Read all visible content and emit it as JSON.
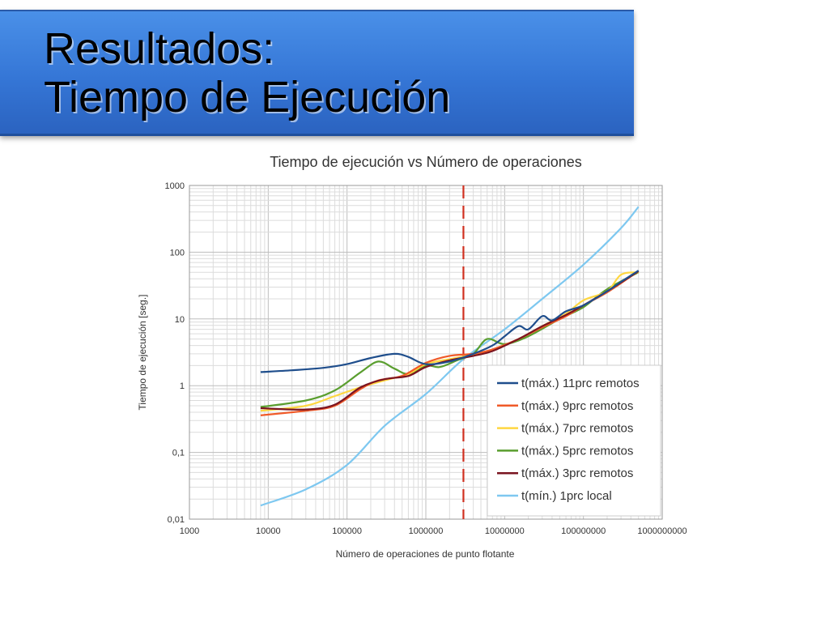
{
  "slide": {
    "title_line1": "Resultados:",
    "title_line2": "Tiempo de Ejecución",
    "banner_color": "#3a7de0"
  },
  "chart_data": {
    "type": "line",
    "title": "Tiempo de ejecución vs Número de operaciones",
    "xlabel": "Número de operaciones de punto flotante",
    "ylabel": "Tiempo de ejecución [seg.]",
    "xscale": "log",
    "yscale": "log",
    "xlim": [
      1000,
      1000000000
    ],
    "ylim": [
      0.01,
      1000
    ],
    "x_ticks": [
      "1000",
      "10000",
      "100000",
      "1000000",
      "10000000",
      "100000000",
      "1000000000"
    ],
    "y_ticks": [
      "0,01",
      "0,1",
      "1",
      "10",
      "100",
      "1000"
    ],
    "grid": true,
    "legend_position": "bottom-right",
    "vertical_reference_x": 3000000,
    "vertical_reference_color": "#d03020",
    "series": [
      {
        "name": "t(máx.) 11prc remotos",
        "color": "#1f4e8c",
        "points": [
          [
            8000,
            1.6
          ],
          [
            20000,
            1.7
          ],
          [
            50000,
            1.85
          ],
          [
            100000,
            2.1
          ],
          [
            200000,
            2.6
          ],
          [
            400000,
            3.0
          ],
          [
            600000,
            2.7
          ],
          [
            1000000,
            2.1
          ],
          [
            2000000,
            2.3
          ],
          [
            4000000,
            3.0
          ],
          [
            7000000,
            4.0
          ],
          [
            10000000,
            5.5
          ],
          [
            15000000,
            7.8
          ],
          [
            20000000,
            7.0
          ],
          [
            30000000,
            11.0
          ],
          [
            40000000,
            9.5
          ],
          [
            60000000,
            13.0
          ],
          [
            100000000,
            16.0
          ],
          [
            200000000,
            26.0
          ],
          [
            300000000,
            36.0
          ],
          [
            500000000,
            53.0
          ]
        ]
      },
      {
        "name": "t(máx.)  9prc remotos",
        "color": "#f05a28",
        "points": [
          [
            8000,
            0.36
          ],
          [
            30000,
            0.42
          ],
          [
            70000,
            0.5
          ],
          [
            150000,
            0.9
          ],
          [
            250000,
            1.2
          ],
          [
            500000,
            1.4
          ],
          [
            1000000,
            2.2
          ],
          [
            2000000,
            2.8
          ],
          [
            4000000,
            3.0
          ],
          [
            7000000,
            3.5
          ],
          [
            15000000,
            5.0
          ],
          [
            30000000,
            7.5
          ],
          [
            60000000,
            11.0
          ],
          [
            100000000,
            16.0
          ],
          [
            200000000,
            25.0
          ],
          [
            500000000,
            52.0
          ]
        ]
      },
      {
        "name": "t(máx.)  7prc remotos",
        "color": "#ffd740",
        "points": [
          [
            8000,
            0.42
          ],
          [
            30000,
            0.5
          ],
          [
            70000,
            0.7
          ],
          [
            150000,
            0.95
          ],
          [
            300000,
            1.2
          ],
          [
            600000,
            1.5
          ],
          [
            1000000,
            2.1
          ],
          [
            2000000,
            2.5
          ],
          [
            4000000,
            2.9
          ],
          [
            7000000,
            3.4
          ],
          [
            15000000,
            5.0
          ],
          [
            30000000,
            7.8
          ],
          [
            60000000,
            12.0
          ],
          [
            100000000,
            19.0
          ],
          [
            200000000,
            26.0
          ],
          [
            300000000,
            46.0
          ],
          [
            500000000,
            50.0
          ]
        ]
      },
      {
        "name": "t(máx.) 5prc remotos",
        "color": "#5a9e2f",
        "points": [
          [
            8000,
            0.48
          ],
          [
            30000,
            0.6
          ],
          [
            70000,
            0.85
          ],
          [
            150000,
            1.6
          ],
          [
            250000,
            2.3
          ],
          [
            400000,
            1.8
          ],
          [
            600000,
            1.5
          ],
          [
            1000000,
            2.0
          ],
          [
            1500000,
            1.9
          ],
          [
            2500000,
            2.4
          ],
          [
            4000000,
            3.0
          ],
          [
            6000000,
            5.0
          ],
          [
            10000000,
            4.2
          ],
          [
            20000000,
            5.5
          ],
          [
            50000000,
            10.0
          ],
          [
            100000000,
            15.0
          ],
          [
            200000000,
            28.0
          ],
          [
            500000000,
            50.0
          ]
        ]
      },
      {
        "name": "t(máx.)  3prc remotos",
        "color": "#7a1420",
        "points": [
          [
            8000,
            0.46
          ],
          [
            30000,
            0.44
          ],
          [
            70000,
            0.52
          ],
          [
            150000,
            0.95
          ],
          [
            300000,
            1.25
          ],
          [
            600000,
            1.4
          ],
          [
            1000000,
            1.9
          ],
          [
            2000000,
            2.4
          ],
          [
            4000000,
            2.8
          ],
          [
            7000000,
            3.3
          ],
          [
            15000000,
            5.0
          ],
          [
            30000000,
            7.8
          ],
          [
            60000000,
            11.5
          ],
          [
            100000000,
            16.0
          ],
          [
            200000000,
            26.0
          ],
          [
            500000000,
            52.0
          ]
        ]
      },
      {
        "name": "t(mín.)  1prc local",
        "color": "#7ec8f0",
        "points": [
          [
            8000,
            0.016
          ],
          [
            30000,
            0.028
          ],
          [
            100000,
            0.065
          ],
          [
            300000,
            0.25
          ],
          [
            1000000,
            0.75
          ],
          [
            3000000,
            2.5
          ],
          [
            10000000,
            7.0
          ],
          [
            30000000,
            20.0
          ],
          [
            100000000,
            65.0
          ],
          [
            300000000,
            230.0
          ],
          [
            500000000,
            480.0
          ]
        ]
      }
    ]
  }
}
